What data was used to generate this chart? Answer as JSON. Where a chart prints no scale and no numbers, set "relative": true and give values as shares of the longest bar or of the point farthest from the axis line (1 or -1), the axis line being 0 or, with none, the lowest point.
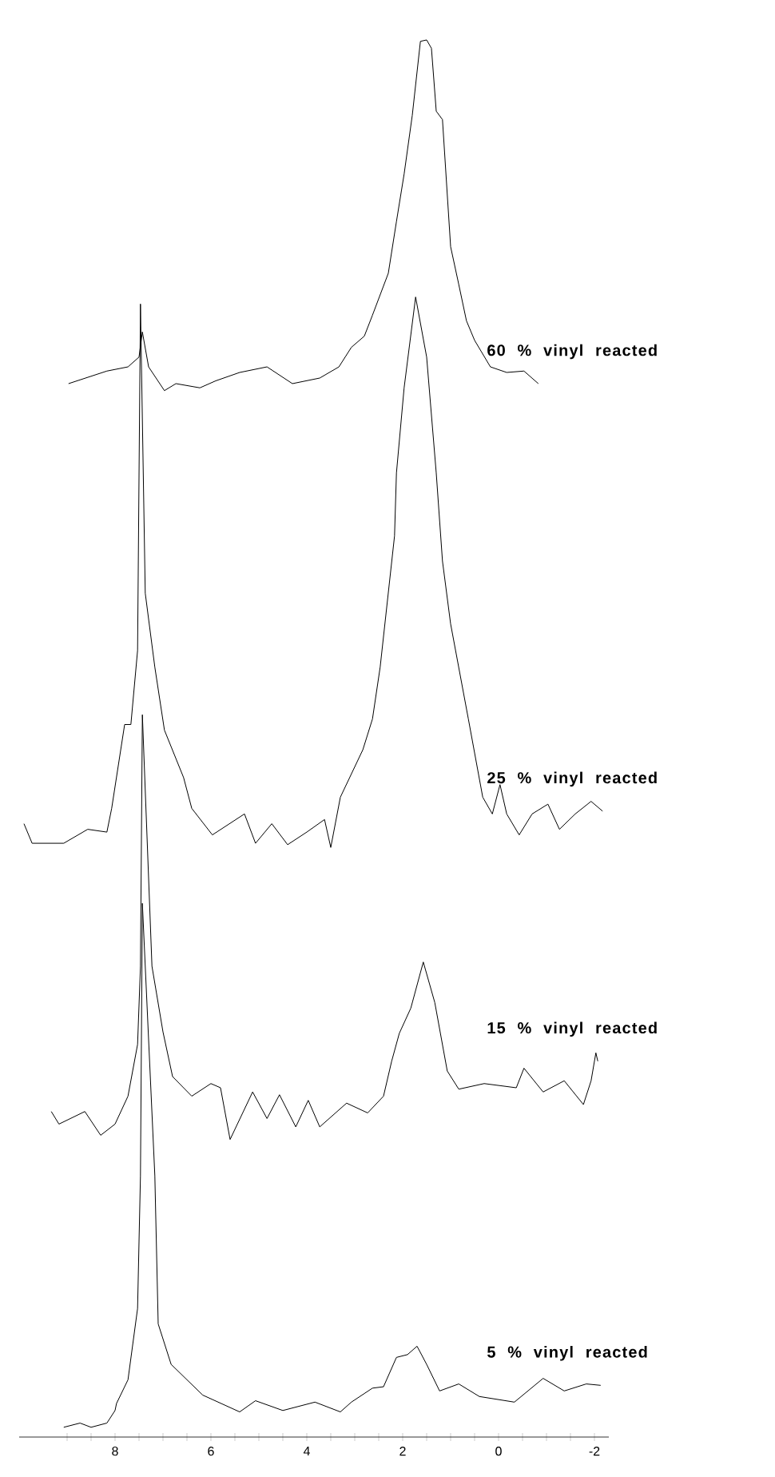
{
  "chart_data": {
    "type": "line",
    "relative": true,
    "xlim": [
      10,
      -2.3
    ],
    "xticks": [
      {
        "value": 9,
        "label": null
      },
      {
        "value": 8.5,
        "label": null
      },
      8,
      {
        "value": 7.5,
        "label": null
      },
      {
        "value": 7,
        "label": null
      },
      {
        "value": 6.5,
        "label": null
      },
      6,
      {
        "value": 5.5,
        "label": null
      },
      {
        "value": 5,
        "label": null
      },
      {
        "value": 4.5,
        "label": null
      },
      4,
      {
        "value": 3.5,
        "label": null
      },
      {
        "value": 3,
        "label": null
      },
      {
        "value": 2.5,
        "label": null
      },
      2,
      {
        "value": 1.5,
        "label": null
      },
      {
        "value": 1,
        "label": null
      },
      {
        "value": 0.5,
        "label": null
      },
      0,
      {
        "value": -0.5,
        "label": null
      },
      {
        "value": -1,
        "label": null
      },
      {
        "value": -1.5,
        "label": null
      },
      -2
    ],
    "series": [
      {
        "name": "60 % vinyl reacted",
        "color": "#000000",
        "x": [
          8.97,
          8.17,
          7.73,
          7.5,
          7.43,
          7.3,
          6.97,
          6.73,
          6.23,
          5.9,
          5.4,
          4.83,
          4.3,
          3.73,
          3.33,
          3.07,
          2.8,
          2.63,
          2.3,
          2.13,
          1.97,
          1.8,
          1.63,
          1.5,
          1.4,
          1.3,
          1.17,
          1.0,
          0.83,
          0.67,
          0.5,
          0.17,
          -0.17,
          -0.53,
          -0.83
        ],
        "values": [
          0.754,
          0.763,
          0.766,
          0.773,
          0.791,
          0.766,
          0.749,
          0.754,
          0.751,
          0.756,
          0.762,
          0.766,
          0.754,
          0.758,
          0.766,
          0.78,
          0.788,
          0.803,
          0.833,
          0.87,
          0.904,
          0.946,
          0.999,
          1.0,
          0.994,
          0.949,
          0.943,
          0.852,
          0.825,
          0.799,
          0.785,
          0.766,
          0.762,
          0.763,
          0.754
        ]
      },
      {
        "name": "25 % vinyl reacted",
        "color": "#000000",
        "x": [
          9.9,
          9.73,
          9.07,
          8.57,
          8.17,
          8.07,
          7.8,
          7.67,
          7.53,
          7.47,
          7.37,
          7.17,
          6.97,
          6.57,
          6.4,
          5.97,
          5.3,
          5.07,
          4.73,
          4.4,
          4.0,
          3.63,
          3.5,
          3.3,
          2.83,
          2.63,
          2.47,
          2.17,
          2.13,
          1.97,
          1.73,
          1.5,
          1.3,
          1.17,
          1.0,
          0.63,
          0.33,
          0.13,
          -0.03,
          -0.17,
          -0.43,
          -0.7,
          -1.03,
          -1.27,
          -1.6,
          -1.93,
          -2.17
        ],
        "values": [
          0.439,
          0.425,
          0.425,
          0.435,
          0.433,
          0.45,
          0.51,
          0.51,
          0.563,
          0.811,
          0.604,
          0.551,
          0.506,
          0.472,
          0.45,
          0.431,
          0.446,
          0.425,
          0.439,
          0.424,
          0.433,
          0.442,
          0.422,
          0.458,
          0.492,
          0.514,
          0.551,
          0.645,
          0.69,
          0.751,
          0.816,
          0.773,
          0.69,
          0.627,
          0.582,
          0.514,
          0.458,
          0.446,
          0.467,
          0.446,
          0.431,
          0.446,
          0.453,
          0.435,
          0.446,
          0.455,
          0.448
        ]
      },
      {
        "name": "15 % vinyl reacted",
        "color": "#000000",
        "x": [
          9.33,
          9.17,
          8.63,
          8.3,
          8.0,
          7.73,
          7.53,
          7.47,
          7.43,
          7.23,
          7.0,
          6.8,
          6.4,
          6.0,
          5.8,
          5.6,
          5.13,
          4.83,
          4.57,
          4.23,
          3.97,
          3.73,
          3.17,
          2.73,
          2.4,
          2.23,
          2.07,
          1.83,
          1.57,
          1.33,
          1.07,
          0.83,
          0.3,
          -0.37,
          -0.53,
          -0.93,
          -1.37,
          -1.77,
          -1.93,
          -2.03,
          -2.07
        ],
        "values": [
          0.233,
          0.224,
          0.233,
          0.216,
          0.224,
          0.244,
          0.281,
          0.337,
          0.517,
          0.337,
          0.29,
          0.258,
          0.244,
          0.253,
          0.25,
          0.213,
          0.247,
          0.228,
          0.245,
          0.222,
          0.241,
          0.222,
          0.239,
          0.232,
          0.244,
          0.269,
          0.289,
          0.307,
          0.34,
          0.311,
          0.262,
          0.249,
          0.253,
          0.25,
          0.264,
          0.247,
          0.255,
          0.238,
          0.255,
          0.275,
          0.269
        ]
      },
      {
        "name": "5 % vinyl reacted",
        "color": "#000000",
        "x": [
          9.07,
          8.73,
          8.5,
          8.17,
          8.0,
          7.97,
          7.73,
          7.53,
          7.47,
          7.43,
          7.17,
          7.1,
          6.83,
          6.17,
          5.4,
          5.07,
          4.5,
          3.83,
          3.3,
          3.07,
          2.63,
          2.4,
          2.13,
          1.9,
          1.7,
          1.5,
          1.23,
          0.83,
          0.4,
          -0.33,
          -0.93,
          -1.37,
          -1.83,
          -2.13
        ],
        "values": [
          0.007,
          0.01,
          0.007,
          0.01,
          0.019,
          0.024,
          0.041,
          0.092,
          0.187,
          0.382,
          0.187,
          0.081,
          0.052,
          0.03,
          0.018,
          0.026,
          0.019,
          0.025,
          0.018,
          0.025,
          0.035,
          0.036,
          0.057,
          0.059,
          0.065,
          0.052,
          0.033,
          0.038,
          0.029,
          0.025,
          0.042,
          0.033,
          0.038,
          0.037
        ]
      }
    ]
  }
}
